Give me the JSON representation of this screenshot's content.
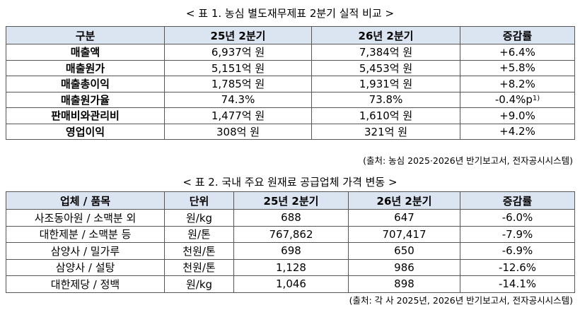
{
  "table1": {
    "title": "< 표 1. 농심 별도재무제표 2분기 실적 비교 >",
    "header": [
      "구분",
      "25년 2분기",
      "26년 2분기",
      "증감률"
    ],
    "rows": [
      [
        "매출액",
        "6,937억 원",
        "7,384억 원",
        "+6.4%"
      ],
      [
        "매출원가",
        "5,151억 원",
        "5,453억 원",
        "+5.8%"
      ],
      [
        "매출총이익",
        "1,785억 원",
        "1,931억 원",
        "+8.2%"
      ],
      [
        "매출원가율",
        "74.3%",
        "73.8%",
        {
          "text": "-0.4%p",
          "sup": "1)"
        }
      ],
      [
        "판매비와관리비",
        "1,477억 원",
        "1,610억 원",
        "+9.0%"
      ],
      [
        "영업이익",
        "308억 원",
        "321억 원",
        "+4.2%"
      ]
    ],
    "source": "(출처: 농심 2025·2026년 반기보고서, 전자공시시스템)"
  },
  "table2": {
    "title": "< 표 2. 국내 주요 원재료 공급업체 가격 변동 >",
    "header": [
      "업체 / 품목",
      "단위",
      "25년 2분기",
      "26년 2분기",
      "증감률"
    ],
    "rows": [
      [
        "사조동아원 / 소맥분 외",
        "원/kg",
        "688",
        "647",
        "-6.0%"
      ],
      [
        "대한제분 / 소맥분 등",
        "원/톤",
        "767,862",
        "707,417",
        "-7.9%"
      ],
      [
        "삼양사 / 밀가루",
        "천원/톤",
        "698",
        "650",
        "-6.9%"
      ],
      [
        "삼양사 / 설탕",
        "천원/톤",
        "1,128",
        "986",
        "-12.6%"
      ],
      [
        "대한제당 / 정백",
        "원/kg",
        "1,046",
        "898",
        "-14.1%"
      ]
    ],
    "source": "(출처: 각 사 2025년, 2026년 반기보고서, 전자공시시스템)"
  }
}
